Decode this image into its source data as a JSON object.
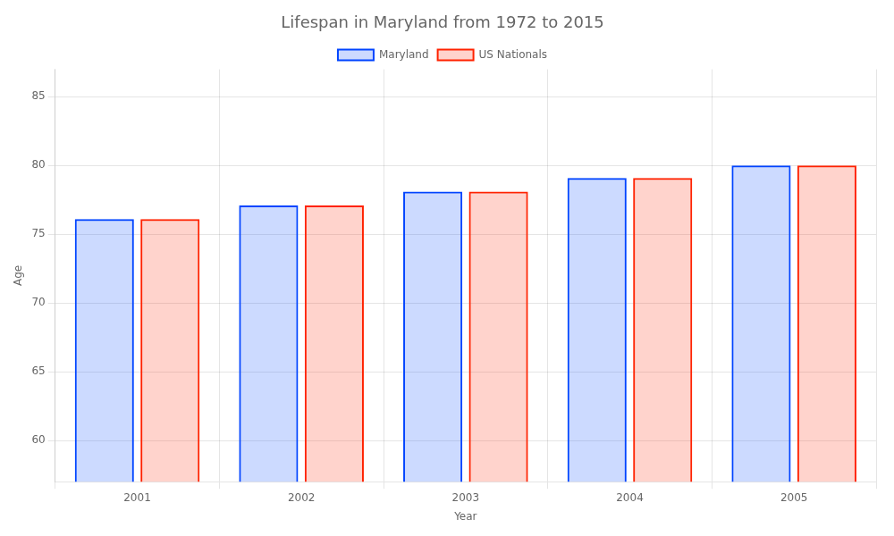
{
  "chart_data": {
    "type": "bar",
    "title": "Lifespan in Maryland from 1972 to 2015",
    "xlabel": "Year",
    "ylabel": "Age",
    "categories": [
      "2001",
      "2002",
      "2003",
      "2004",
      "2005"
    ],
    "series": [
      {
        "name": "Maryland",
        "color": "#0044ff",
        "values": [
          76.1,
          77.1,
          78.1,
          79.1,
          80.0
        ]
      },
      {
        "name": "US Nationals",
        "color": "#ff2200",
        "values": [
          76.1,
          77.1,
          78.1,
          79.1,
          80.0
        ]
      }
    ],
    "ylim": [
      57,
      87
    ],
    "yticks": [
      60,
      65,
      70,
      75,
      80,
      85
    ],
    "grid": true,
    "legend": "top"
  }
}
